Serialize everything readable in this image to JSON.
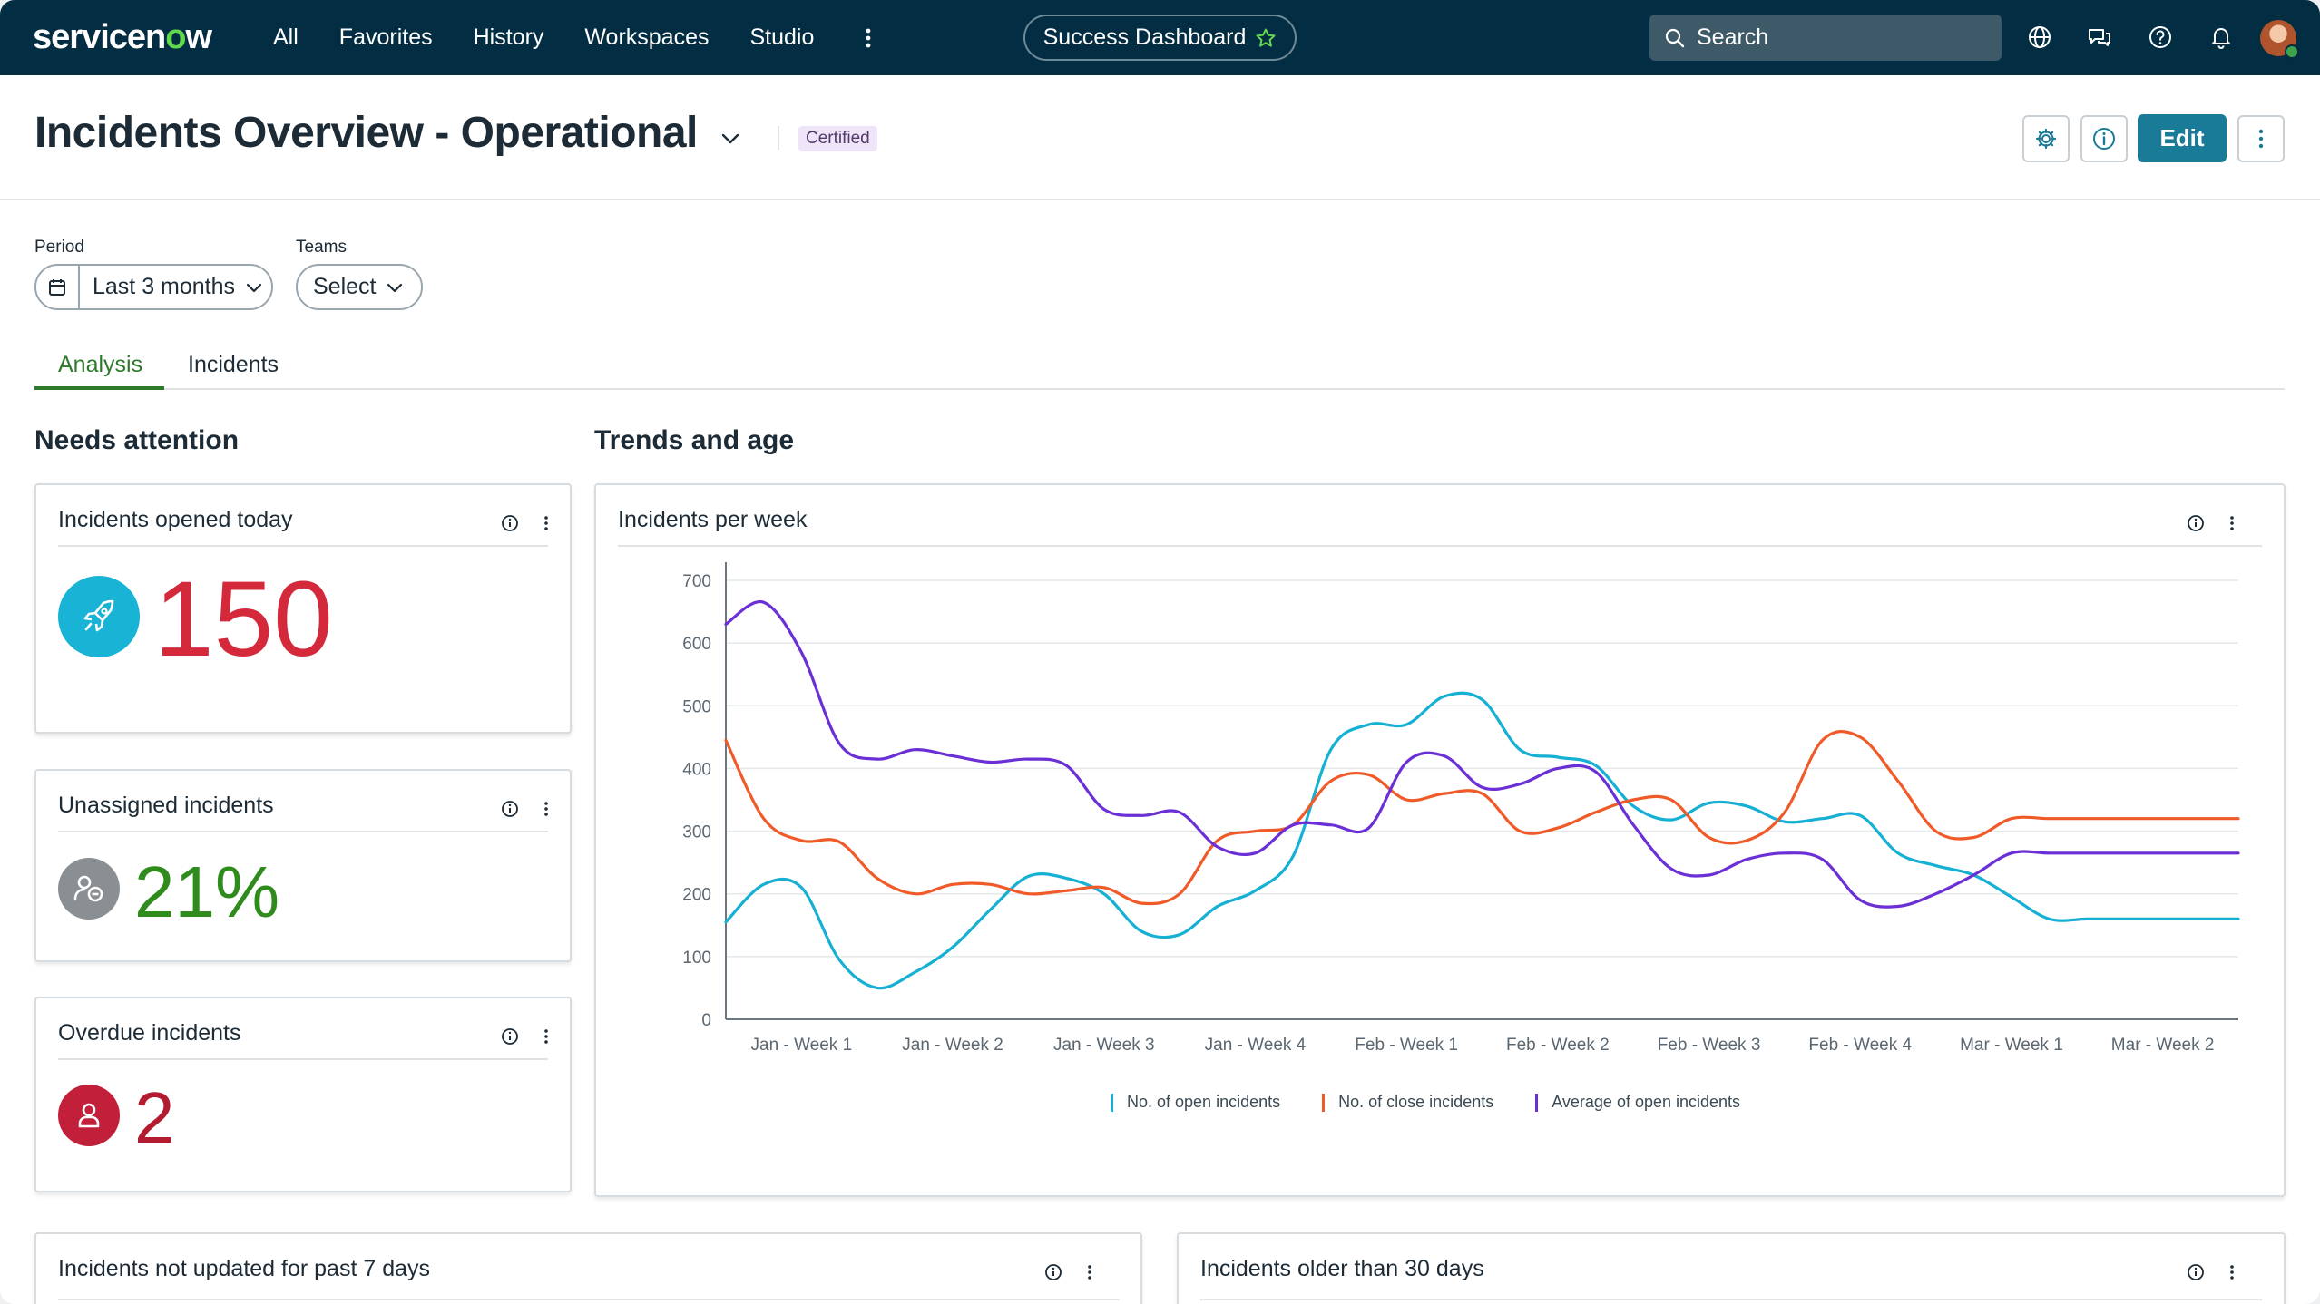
{
  "nav": {
    "logo_pre": "servicen",
    "logo_o": "o",
    "logo_post": "w",
    "links": [
      "All",
      "Favorites",
      "History",
      "Workspaces",
      "Studio"
    ],
    "workspace_pill": "Success Dashboard",
    "search_placeholder": "Search",
    "icons": [
      "globe-icon",
      "chat-icon",
      "help-icon",
      "bell-icon",
      "avatar"
    ]
  },
  "header": {
    "title": "Incidents Overview - Operational",
    "badge": "Certified",
    "edit_label": "Edit"
  },
  "filters": {
    "period_label": "Period",
    "period_value": "Last 3 months",
    "teams_label": "Teams",
    "teams_value": "Select"
  },
  "tabs": [
    "Analysis",
    "Incidents"
  ],
  "sections": {
    "needs_attention": "Needs attention",
    "trends": "Trends and age"
  },
  "kpis": [
    {
      "title": "Incidents opened today",
      "value": "150",
      "color": "#d4283b",
      "icon": "rocket-icon",
      "icon_bg": "#19b3d6"
    },
    {
      "title": "Unassigned incidents",
      "value": "21%",
      "color": "#2e8b1c",
      "icon": "unassigned-user-icon",
      "icon_bg": "#8a8f94"
    },
    {
      "title": "Overdue incidents",
      "value": "2",
      "color": "#b31b30",
      "icon": "user-icon",
      "icon_bg": "#c2203a"
    }
  ],
  "bottom_cards": {
    "left": "Incidents not updated for past 7 days",
    "right": "Incidents older than 30 days"
  },
  "chart_data": {
    "type": "line",
    "title": "Incidents per week",
    "xlabel": "",
    "ylabel": "",
    "ylim": [
      0,
      700
    ],
    "yticks": [
      0,
      100,
      200,
      300,
      400,
      500,
      600,
      700
    ],
    "grid": true,
    "legend_position": "bottom",
    "categories": [
      "Jan - Week 1",
      "Jan - Week 2",
      "Jan - Week 3",
      "Jan - Week 4",
      "Feb - Week 1",
      "Feb - Week 2",
      "Feb - Week 3",
      "Feb - Week 4",
      "Mar - Week 1",
      "Mar - Week 2"
    ],
    "x": [
      0,
      0.25,
      0.5,
      0.75,
      1,
      1.25,
      1.5,
      1.75,
      2,
      2.25,
      2.5,
      2.75,
      3,
      3.25,
      3.5,
      3.75,
      4,
      4.25,
      4.5,
      4.75,
      5,
      5.25,
      5.5,
      5.75,
      6,
      6.25,
      6.5,
      6.75,
      7,
      7.25,
      7.5,
      7.75,
      8,
      8.25,
      8.5,
      8.75,
      9,
      9.25,
      9.5,
      9.75,
      10
    ],
    "series": [
      {
        "name": "No. of open incidents",
        "color": "#15b0d3",
        "values": [
          155,
          215,
          210,
          95,
          50,
          75,
          115,
          175,
          228,
          225,
          200,
          140,
          135,
          180,
          205,
          260,
          430,
          470,
          470,
          515,
          510,
          430,
          418,
          405,
          340,
          318,
          345,
          340,
          315,
          320,
          325,
          265,
          245,
          230,
          195,
          160,
          160,
          160,
          160,
          160,
          160
        ]
      },
      {
        "name": "No. of close incidents",
        "color": "#f05a28",
        "values": [
          445,
          320,
          285,
          283,
          225,
          200,
          215,
          215,
          200,
          205,
          210,
          185,
          200,
          285,
          300,
          310,
          380,
          390,
          350,
          360,
          360,
          300,
          305,
          330,
          350,
          350,
          290,
          285,
          330,
          445,
          450,
          380,
          300,
          290,
          320,
          320,
          320,
          320,
          320,
          320,
          320
        ]
      },
      {
        "name": "Average of open incidents",
        "color": "#6b2fd6",
        "values": [
          630,
          665,
          585,
          440,
          415,
          430,
          420,
          410,
          415,
          405,
          335,
          325,
          330,
          275,
          265,
          310,
          310,
          305,
          410,
          420,
          370,
          375,
          400,
          395,
          310,
          240,
          230,
          255,
          265,
          255,
          190,
          180,
          200,
          230,
          265,
          265,
          265,
          265,
          265,
          265,
          265
        ]
      }
    ]
  }
}
